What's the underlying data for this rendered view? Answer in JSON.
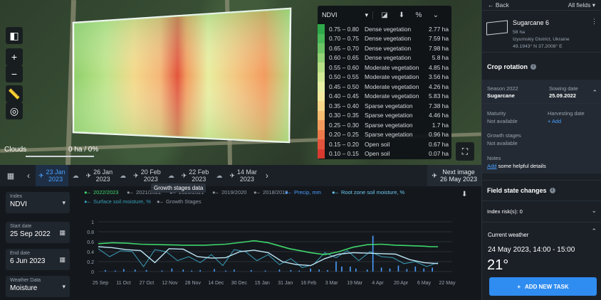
{
  "colors": {
    "accent": "#4a9eff",
    "ndvi_line": "#3fd66a",
    "moisture_line": "#3fa7e8",
    "precip": "#2f7ed8",
    "add_button": "#2f8cf0"
  },
  "map": {
    "clouds_label": "Clouds",
    "clouds_value": "0 ha / 0%",
    "clouds_level": 0,
    "controls": [
      "split-view",
      "zoom-in",
      "zoom-out",
      "ruler",
      "locate",
      "fullscreen"
    ]
  },
  "legend": {
    "index": "NDVI",
    "icons": [
      "compare-icon",
      "download-icon",
      "percent-icon",
      "collapse-icon"
    ],
    "rows": [
      {
        "range": "0.75 – 0.80",
        "cls": "Dense vegetation",
        "ha": "2.77 ha",
        "color": "#2ea84a"
      },
      {
        "range": "0.70 – 0.75",
        "cls": "Dense vegetation",
        "ha": "7.59 ha",
        "color": "#49b858"
      },
      {
        "range": "0.65 – 0.70",
        "cls": "Dense vegetation",
        "ha": "7.98 ha",
        "color": "#6cc466"
      },
      {
        "range": "0.60 – 0.65",
        "cls": "Dense vegetation",
        "ha": "5.8 ha",
        "color": "#93d276"
      },
      {
        "range": "0.55 – 0.60",
        "cls": "Moderate vegetation",
        "ha": "4.85 ha",
        "color": "#b7df86"
      },
      {
        "range": "0.50 – 0.55",
        "cls": "Moderate vegetation",
        "ha": "3.56 ha",
        "color": "#d2e995"
      },
      {
        "range": "0.45 – 0.50",
        "cls": "Moderate vegetation",
        "ha": "4.26 ha",
        "color": "#e7f0a5"
      },
      {
        "range": "0.40 – 0.45",
        "cls": "Moderate vegetation",
        "ha": "5.83 ha",
        "color": "#f5eba0"
      },
      {
        "range": "0.35 – 0.40",
        "cls": "Sparse vegetation",
        "ha": "7.38 ha",
        "color": "#f8d88a"
      },
      {
        "range": "0.30 – 0.35",
        "cls": "Sparse vegetation",
        "ha": "4.46 ha",
        "color": "#f7bd73"
      },
      {
        "range": "0.25 – 0.30",
        "cls": "Sparse vegetation",
        "ha": "1.7 ha",
        "color": "#f39c5e"
      },
      {
        "range": "0.20 – 0.25",
        "cls": "Sparse vegetation",
        "ha": "0.96 ha",
        "color": "#ec7a4b"
      },
      {
        "range": "0.15 – 0.20",
        "cls": "Open soil",
        "ha": "0.67 ha",
        "color": "#e2553c"
      },
      {
        "range": "0.10 – 0.15",
        "cls": "Open soil",
        "ha": "0.07 ha",
        "color": "#d83a30"
      }
    ]
  },
  "timeline": {
    "items": [
      {
        "d": "23 Jan",
        "y": "2023",
        "active": true
      },
      {
        "d": "26 Jan",
        "y": "2023",
        "active": false
      },
      {
        "d": "20 Feb",
        "y": "2023",
        "active": false
      },
      {
        "d": "22 Feb",
        "y": "2023",
        "active": false
      },
      {
        "d": "14 Mar",
        "y": "2023",
        "active": false
      }
    ],
    "next_label": "Next image",
    "next_date": "26 May 2023"
  },
  "controls": {
    "index": {
      "label": "Index",
      "value": "NDVI"
    },
    "start": {
      "label": "Start date",
      "value": "25 Sep 2022"
    },
    "end": {
      "label": "End date",
      "value": "6 Jun 2023"
    },
    "weather": {
      "label": "Weather Data",
      "value": "Moisture"
    }
  },
  "chart_data": {
    "type": "line",
    "legend": [
      {
        "name": "2022/2023",
        "color": "#3fd66a",
        "active": true
      },
      {
        "name": "2021/2022",
        "color": "#8f98a3",
        "active": false
      },
      {
        "name": "2020/2021",
        "color": "#8f98a3",
        "active": false
      },
      {
        "name": "2019/2020",
        "color": "#8f98a3",
        "active": false
      },
      {
        "name": "2018/2019",
        "color": "#8f98a3",
        "active": false
      },
      {
        "name": "Precip, mm",
        "color": "#4a9eff",
        "active": true
      },
      {
        "name": "Root zone soil moisture, %",
        "color": "#6cc8ee",
        "active": true
      },
      {
        "name": "Surface soil moisture, %",
        "color": "#3a9db8",
        "active": true
      },
      {
        "name": "Growth Stages",
        "color": "#8f98a3",
        "active": false
      }
    ],
    "tooltip": "Growth stages data",
    "x_ticks": [
      "25 Sep",
      "11 Oct",
      "27 Oct",
      "12 Nov",
      "28 Nov",
      "14 Dec",
      "30 Dec",
      "15 Jan",
      "31 Jan",
      "16 Feb",
      "3 Mar",
      "19 Mar",
      "4 Apr",
      "20 Apr",
      "6 May",
      "22 May"
    ],
    "y_ticks": [
      "0",
      "0.2",
      "0.4",
      "0.6",
      "0.8",
      "1"
    ],
    "ylim": [
      0,
      1
    ],
    "x_days_range": [
      0,
      250
    ],
    "ndvi": {
      "x": [
        0,
        10,
        20,
        30,
        45,
        60,
        75,
        90,
        105,
        110,
        120,
        135,
        150,
        160,
        170,
        180,
        190,
        200,
        210,
        220,
        230,
        235,
        240
      ],
      "y": [
        0.56,
        0.58,
        0.57,
        0.55,
        0.54,
        0.53,
        0.53,
        0.55,
        0.6,
        0.62,
        0.58,
        0.46,
        0.38,
        0.34,
        0.4,
        0.49,
        0.54,
        0.55,
        0.53,
        0.52,
        0.51,
        0.5,
        0.5
      ]
    },
    "root_moisture": {
      "x": [
        0,
        10,
        20,
        30,
        40,
        50,
        60,
        70,
        80,
        90,
        100,
        110,
        120,
        130,
        140,
        150,
        160,
        170,
        180,
        190,
        200,
        210,
        220,
        230,
        240
      ],
      "y": [
        0.5,
        0.48,
        0.44,
        0.42,
        0.18,
        0.46,
        0.45,
        0.3,
        0.27,
        0.28,
        0.4,
        0.43,
        0.38,
        0.2,
        0.14,
        0.12,
        0.26,
        0.35,
        0.38,
        0.37,
        0.36,
        0.35,
        0.24,
        0.18,
        0.16
      ]
    },
    "surface_moisture": {
      "x": [
        0,
        8,
        16,
        24,
        32,
        40,
        48,
        56,
        64,
        72,
        80,
        88,
        96,
        104,
        112,
        120,
        128,
        136,
        144,
        152,
        160,
        168,
        176,
        184,
        192,
        200,
        208,
        216,
        224,
        232,
        240
      ],
      "y": [
        0.46,
        0.3,
        0.42,
        0.4,
        0.1,
        0.44,
        0.4,
        0.22,
        0.3,
        0.18,
        0.34,
        0.12,
        0.44,
        0.4,
        0.22,
        0.34,
        0.14,
        0.26,
        0.08,
        0.14,
        0.38,
        0.28,
        0.42,
        0.22,
        0.4,
        0.3,
        0.28,
        0.16,
        0.2,
        0.1,
        0.18
      ]
    },
    "precip": {
      "x": [
        5,
        12,
        18,
        26,
        34,
        45,
        52,
        60,
        66,
        72,
        82,
        90,
        96,
        108,
        118,
        128,
        136,
        142,
        150,
        156,
        162,
        168,
        172,
        178,
        182,
        190,
        194,
        200,
        206,
        212,
        218,
        224,
        230,
        236
      ],
      "y": [
        0.03,
        0.02,
        0.05,
        0.04,
        0.03,
        0.02,
        0.06,
        0.04,
        0.02,
        0.03,
        0.05,
        0.02,
        0.04,
        0.03,
        0.02,
        0.04,
        0.03,
        0.02,
        0.06,
        0.04,
        0.03,
        0.2,
        0.1,
        0.1,
        0.06,
        0.04,
        0.72,
        0.08,
        0.06,
        0.12,
        0.05,
        0.1,
        0.06,
        0.08
      ]
    }
  },
  "panel": {
    "back": "Back",
    "all_fields": "All fields",
    "field_name": "Sugarcane 6",
    "field_area": "58 ha",
    "field_location": "Izyumskiy District, Ukraine",
    "field_coords": "49.1943° N 37.2008° E",
    "crop_rotation_title": "Crop rotation",
    "season_label": "Season 2022",
    "season_value": "Sugarcane",
    "sowing_label": "Sowing date",
    "sowing_value": "25.09.2022",
    "maturity_label": "Maturity",
    "maturity_value": "Not available",
    "harvest_label": "Harvesting date",
    "harvest_value": "+ Add",
    "growth_label": "Growth stages",
    "growth_value": "Not available",
    "notes_label": "Notes",
    "notes_link": "Add",
    "notes_rest": " some helpful details",
    "state_title": "Field state changes",
    "risk_label": "Index risk(s): 0",
    "weather_title": "Current weather",
    "weather_time": "24 May 2023, 14:00 - 15:00",
    "weather_temp": "21°",
    "add_task": "ADD NEW TASK"
  }
}
